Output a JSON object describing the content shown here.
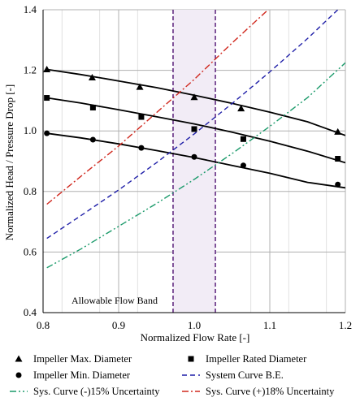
{
  "chart_data": {
    "type": "line",
    "xlabel": "Normalized Flow Rate [-]",
    "ylabel": "Normalized Head / Pressure Drop [-]",
    "xlim": [
      0.8,
      1.2
    ],
    "ylim": [
      0.4,
      1.4
    ],
    "x_ticks": [
      0.8,
      0.9,
      1.0,
      1.1,
      1.2
    ],
    "x_tick_labels": [
      "0.8",
      "0.9",
      "1.0",
      "1.1",
      "1.2"
    ],
    "y_ticks": [
      0.4,
      0.6,
      0.8,
      1.0,
      1.2,
      1.4
    ],
    "y_tick_labels": [
      "0.4",
      "0.6",
      "0.8",
      "1.0",
      "1.2",
      "1.4"
    ],
    "grid": true,
    "legend_position": "bottom",
    "band": {
      "label": "Allowable Flow Band",
      "x_start": 0.972,
      "x_end": 1.028,
      "color": "#5a1f7a",
      "fill": "#f2ecf6"
    },
    "series": [
      {
        "name": "Impeller Max. Diameter",
        "style": "solid",
        "marker": "triangle",
        "color": "#000000",
        "line_x": [
          0.805,
          0.85,
          0.9,
          0.95,
          1.0,
          1.05,
          1.1,
          1.15,
          1.2
        ],
        "line_y": [
          1.203,
          1.186,
          1.165,
          1.143,
          1.118,
          1.091,
          1.062,
          1.03,
          0.985
        ],
        "marker_x": [
          0.805,
          0.865,
          0.928,
          1.0,
          1.062,
          1.19
        ],
        "marker_y": [
          1.203,
          1.176,
          1.145,
          1.111,
          1.074,
          0.997
        ]
      },
      {
        "name": "Impeller Rated Diameter",
        "style": "solid",
        "marker": "square",
        "color": "#000000",
        "line_x": [
          0.805,
          0.85,
          0.9,
          0.95,
          1.0,
          1.05,
          1.1,
          1.15,
          1.2
        ],
        "line_y": [
          1.109,
          1.092,
          1.07,
          1.047,
          1.023,
          0.996,
          0.966,
          0.933,
          0.895
        ],
        "marker_x": [
          0.805,
          0.866,
          0.93,
          1.0,
          1.065,
          1.19
        ],
        "marker_y": [
          1.109,
          1.077,
          1.046,
          1.006,
          0.973,
          0.908
        ]
      },
      {
        "name": "Impeller Min. Diameter",
        "style": "solid",
        "marker": "circle",
        "color": "#000000",
        "line_x": [
          0.805,
          0.85,
          0.9,
          0.95,
          1.0,
          1.05,
          1.1,
          1.15,
          1.2
        ],
        "line_y": [
          0.992,
          0.977,
          0.957,
          0.935,
          0.912,
          0.886,
          0.86,
          0.83,
          0.812
        ],
        "marker_x": [
          0.805,
          0.866,
          0.93,
          1.0,
          1.065,
          1.19
        ],
        "marker_y": [
          0.992,
          0.971,
          0.944,
          0.914,
          0.886,
          0.823
        ]
      },
      {
        "name": "System Curve B.E.",
        "style": "dashed",
        "marker": "none",
        "color": "#1f1fa8",
        "line_x": [
          0.805,
          0.85,
          0.9,
          0.95,
          1.0,
          1.05,
          1.1,
          1.15,
          1.19
        ],
        "line_y": [
          0.645,
          0.72,
          0.805,
          0.895,
          0.99,
          1.09,
          1.195,
          1.305,
          1.4
        ]
      },
      {
        "name": "Sys. Curve (-)15% Uncertainty",
        "style": "dash-dot-dot",
        "marker": "none",
        "color": "#1a9a6a",
        "line_x": [
          0.805,
          0.85,
          0.9,
          0.95,
          1.0,
          1.05,
          1.1,
          1.15,
          1.2
        ],
        "line_y": [
          0.548,
          0.61,
          0.685,
          0.76,
          0.84,
          0.925,
          1.015,
          1.11,
          1.225
        ]
      },
      {
        "name": "Sys. Curve (+)18% Uncertainty",
        "style": "dash-dot",
        "marker": "none",
        "color": "#d0281e",
        "line_x": [
          0.805,
          0.85,
          0.9,
          0.95,
          1.0,
          1.05,
          1.1
        ],
        "line_y": [
          0.758,
          0.85,
          0.95,
          1.06,
          1.17,
          1.29,
          1.405
        ]
      }
    ]
  }
}
